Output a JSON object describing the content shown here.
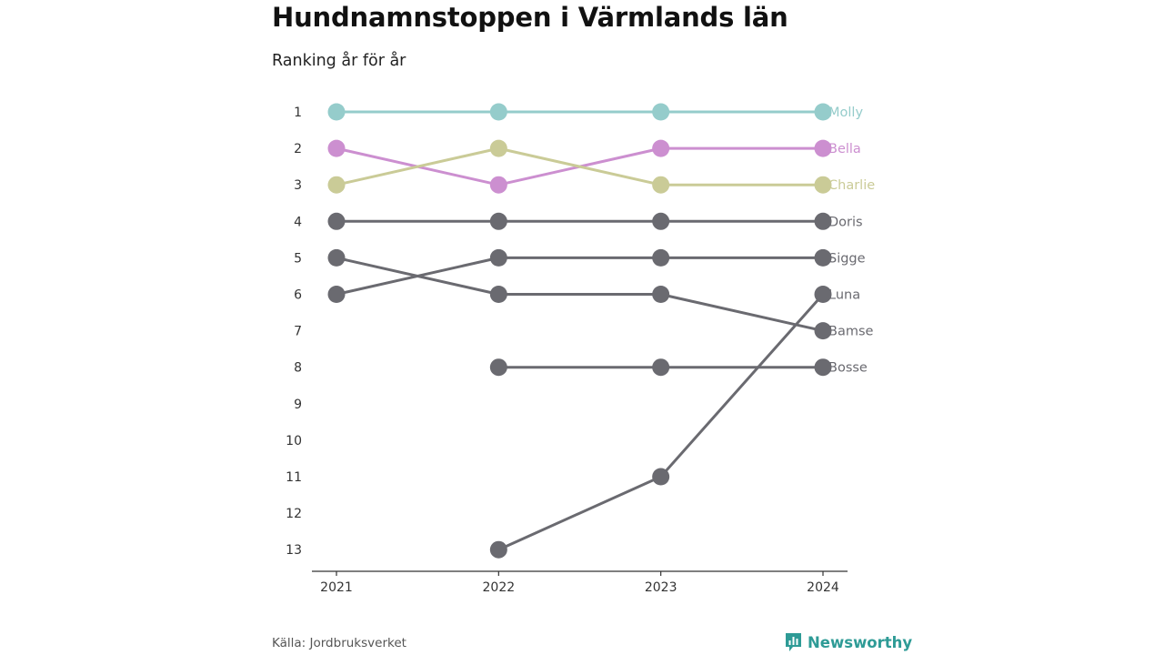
{
  "title": "Hundnamnstoppen i Värmlands län",
  "subtitle": "Ranking år för år",
  "source": "Källa: Jordbruksverket",
  "brand": {
    "name": "Newsworthy",
    "icon": "newsworthy-logo-icon",
    "color": "#2e9b96"
  },
  "chart_data": {
    "type": "line",
    "title": "Hundnamnstoppen i Värmlands län",
    "subtitle": "Ranking år för år",
    "xlabel": "",
    "ylabel": "",
    "x": [
      "2021",
      "2022",
      "2023",
      "2024"
    ],
    "y_ticks": [
      "1",
      "2",
      "3",
      "4",
      "5",
      "6",
      "7",
      "8",
      "9",
      "10",
      "11",
      "12",
      "13"
    ],
    "ylim": [
      1,
      13
    ],
    "y_reversed": true,
    "grid": false,
    "legend": "end-labels",
    "series": [
      {
        "name": "Molly",
        "values": [
          1,
          1,
          1,
          1
        ],
        "color": "#95cccb"
      },
      {
        "name": "Bella",
        "values": [
          2,
          3,
          2,
          2
        ],
        "color": "#cc8fd0"
      },
      {
        "name": "Charlie",
        "values": [
          3,
          2,
          3,
          3
        ],
        "color": "#cacb97"
      },
      {
        "name": "Doris",
        "values": [
          4,
          4,
          4,
          4
        ],
        "color": "#6a6a70"
      },
      {
        "name": "Sigge",
        "values": [
          6,
          5,
          5,
          5
        ],
        "color": "#6a6a70"
      },
      {
        "name": "Luna",
        "values": [
          null,
          13,
          11,
          6
        ],
        "color": "#6a6a70"
      },
      {
        "name": "Bamse",
        "values": [
          5,
          6,
          6,
          7
        ],
        "color": "#6a6a70"
      },
      {
        "name": "Bosse",
        "values": [
          null,
          8,
          8,
          8
        ],
        "color": "#6a6a70"
      }
    ]
  }
}
